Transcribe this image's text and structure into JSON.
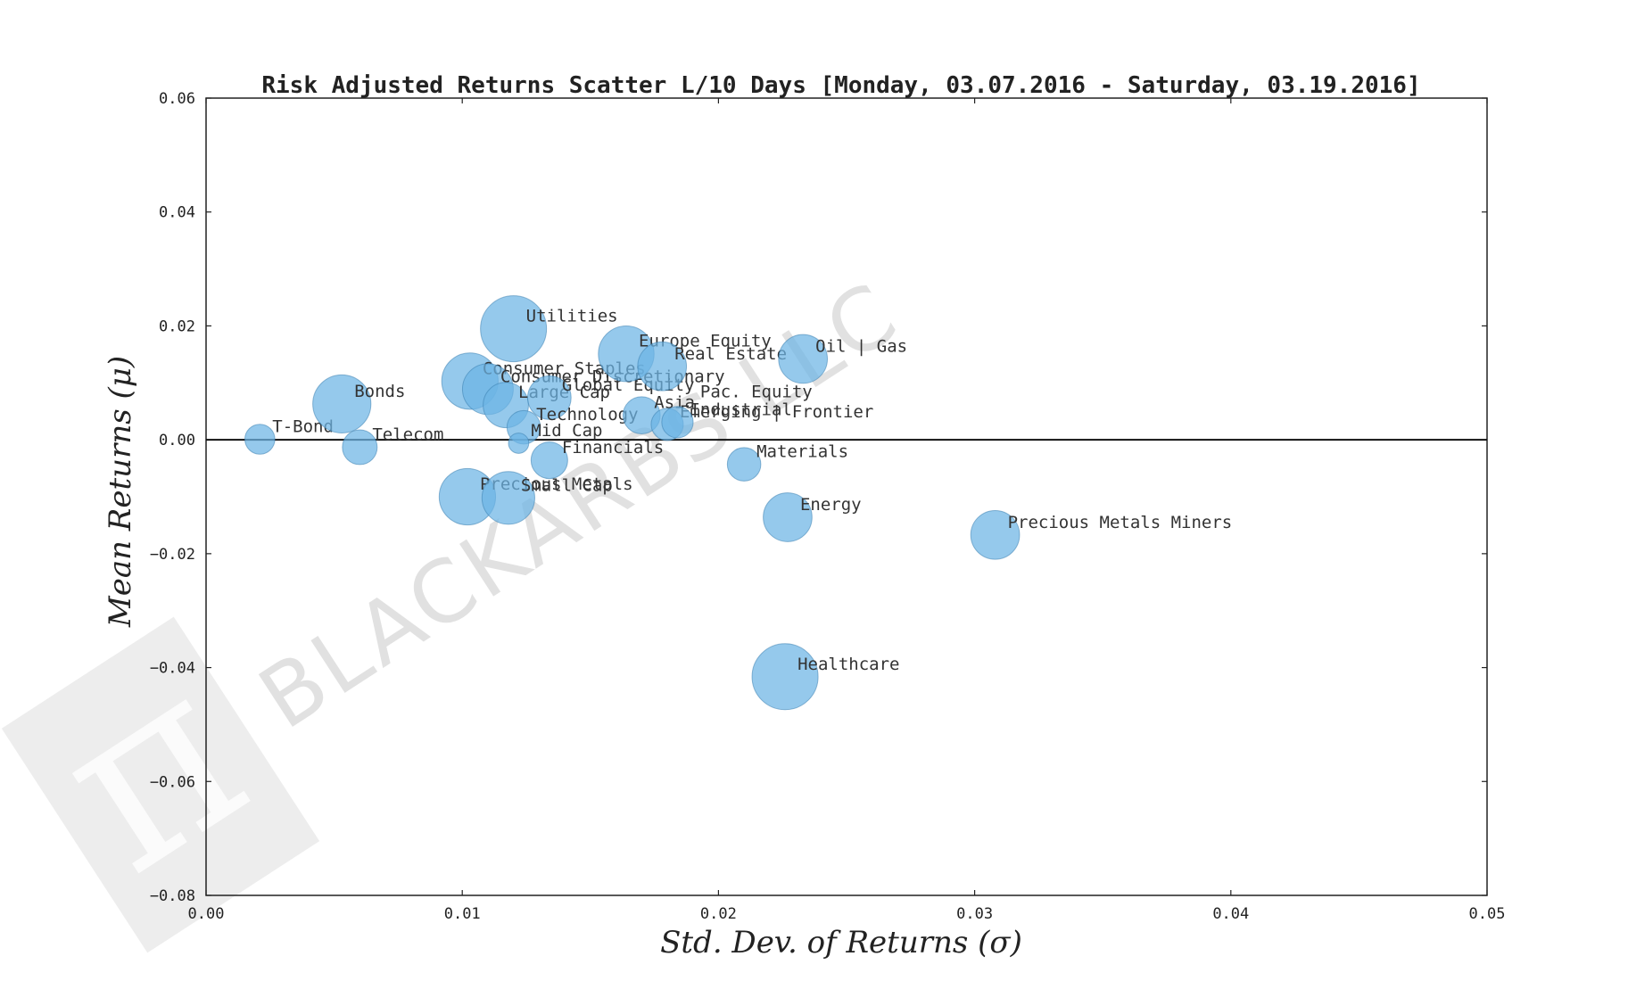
{
  "chart_data": {
    "type": "scatter",
    "title": "Risk Adjusted Returns Scatter L/10 Days [Monday, 03.07.2016 - Saturday, 03.19.2016]",
    "xlabel": "Std.  Dev.  of  Returns   (σ)",
    "ylabel": "Mean  Returns   (μ)",
    "xlim": [
      0.0,
      0.05
    ],
    "ylim": [
      -0.08,
      0.06
    ],
    "xticks": [
      "0.00",
      "0.01",
      "0.02",
      "0.03",
      "0.04",
      "0.05"
    ],
    "yticks": [
      "0.06",
      "0.04",
      "0.02",
      "0.00",
      "−0.02",
      "−0.04",
      "−0.06",
      "−0.08"
    ],
    "grid": false,
    "zero_line": true,
    "marker_color": "#6cb4e4",
    "points": [
      {
        "label": "T-Bond",
        "x": 0.0021,
        "y": 0.0001,
        "size": 0.15
      },
      {
        "label": "Telecom",
        "x": 0.006,
        "y": -0.0013,
        "size": 0.22
      },
      {
        "label": "Bonds",
        "x": 0.0053,
        "y": 0.0063,
        "size": 0.75
      },
      {
        "label": "Consumer Staples",
        "x": 0.0103,
        "y": 0.0103,
        "size": 0.7
      },
      {
        "label": "Consumer Discretionary",
        "x": 0.011,
        "y": 0.0089,
        "size": 0.55
      },
      {
        "label": "Large Cap",
        "x": 0.0117,
        "y": 0.0061,
        "size": 0.42
      },
      {
        "label": "Utilities",
        "x": 0.012,
        "y": 0.0195,
        "size": 1.0
      },
      {
        "label": "Global Equity",
        "x": 0.0134,
        "y": 0.0074,
        "size": 0.38
      },
      {
        "label": "Technology",
        "x": 0.0124,
        "y": 0.0022,
        "size": 0.2
      },
      {
        "label": "Mid Cap",
        "x": 0.0122,
        "y": -0.0006,
        "size": 0.05
      },
      {
        "label": "Financials",
        "x": 0.0134,
        "y": -0.0036,
        "size": 0.25
      },
      {
        "label": "Precious Metals",
        "x": 0.0102,
        "y": -0.01,
        "size": 0.7
      },
      {
        "label": "Small Cap",
        "x": 0.0118,
        "y": -0.0102,
        "size": 0.6
      },
      {
        "label": "Europe Equity",
        "x": 0.0164,
        "y": 0.0151,
        "size": 0.68
      },
      {
        "label": "Real Estate",
        "x": 0.0178,
        "y": 0.0129,
        "size": 0.5
      },
      {
        "label": "Asia",
        "x": 0.017,
        "y": 0.0043,
        "size": 0.26
      },
      {
        "label": "Emerging | Frontier",
        "x": 0.018,
        "y": 0.0027,
        "size": 0.18
      },
      {
        "label": "Industrial",
        "x": 0.0184,
        "y": 0.0031,
        "size": 0.17
      },
      {
        "label": "Pac. Equity",
        "x": 0.0188,
        "y": 0.0062,
        "size": 0.0
      },
      {
        "label": "Oil | Gas",
        "x": 0.0233,
        "y": 0.0142,
        "size": 0.5
      },
      {
        "label": "Materials",
        "x": 0.021,
        "y": -0.0043,
        "size": 0.2
      },
      {
        "label": "Energy",
        "x": 0.0227,
        "y": -0.0136,
        "size": 0.5
      },
      {
        "label": "Precious Metals Miners",
        "x": 0.0308,
        "y": -0.0167,
        "size": 0.5
      },
      {
        "label": "Healthcare",
        "x": 0.0226,
        "y": -0.0416,
        "size": 1.0
      }
    ]
  },
  "watermark": {
    "text": "BLACKARBS LLC",
    "logo_glyph": "π",
    "color": "#bdbdbd"
  }
}
